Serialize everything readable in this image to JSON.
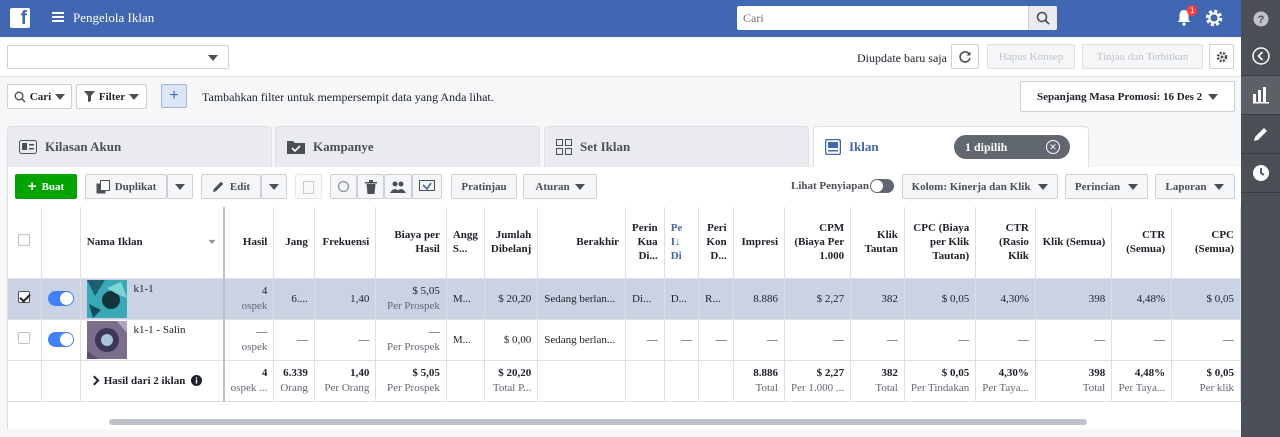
{
  "topbar": {
    "app_title": "Pengelola Iklan",
    "search_placeholder": "Cari",
    "notif_count": "1"
  },
  "colors": {
    "brand": "#4267b2",
    "create": "#00a400",
    "toggle": "#4080ff",
    "selected_row": "#c9d3e3"
  },
  "row1": {
    "updated": "Diupdate baru saja",
    "delete_drafts": "Hapus Konsep",
    "review_publish": "Tinjau dan Terbitkan"
  },
  "row2": {
    "search": "Cari",
    "filter": "Filter",
    "hint": "Tambahkan filter untuk mempersempit data yang Anda lihat.",
    "date_range": "Sepanjang Masa Promosi: 16 Des 2"
  },
  "tabs": {
    "account": "Kilasan Akun",
    "campaigns": "Kampanye",
    "adsets": "Set Iklan",
    "ads": "Iklan",
    "selected": "1 dipilih"
  },
  "toolbar": {
    "create": "Buat",
    "duplicate": "Duplikat",
    "edit": "Edit",
    "preview": "Pratinjau",
    "rules": "Aturan",
    "view_setup": "Lihat Penyiapan",
    "columns": "Kolom: Kinerja dan Klik",
    "breakdown": "Perincian",
    "reports": "Laporan"
  },
  "columns": {
    "name": "Nama Iklan",
    "results": "Hasil",
    "reach": "Jang",
    "frequency": "Frekuensi",
    "cost_per_result": "Biaya per Hasil",
    "budget": "Angg S...",
    "amount_spent": "Jumlah Dibelanj",
    "ends": "Berakhir",
    "quality": "Perin Kua Di...",
    "eng": "Pe I↓ Di",
    "conv": "Peri Kon D...",
    "impressions": "Impresi",
    "cpm": "CPM (Biaya Per 1.000",
    "link_clicks": "Klik Tautan",
    "cpc_link": "CPC (Biaya per Klik Tautan)",
    "ctr_link": "CTR (Rasio Klik",
    "clicks_all": "Klik (Semua)",
    "ctr_all": "CTR (Semua)",
    "cpc_all": "CPC (Semua)"
  },
  "rows": [
    {
      "name": "k1-1",
      "results": "4",
      "results_sub": "ospek",
      "reach": "6....",
      "frequency": "1,40",
      "cost_per_result": "$ 5,05",
      "cost_sub": "Per Prospek",
      "budget": "M...",
      "amount_spent": "$ 20,20",
      "ends": "Sedang berlan...",
      "quality": "Di...",
      "eng": "D...",
      "conv": "R...",
      "impressions": "8.886",
      "cpm": "$ 2,27",
      "link_clicks": "382",
      "cpc_link": "$ 0,05",
      "ctr_link": "4,30%",
      "clicks_all": "398",
      "ctr_all": "4,48%",
      "cpc_all": "$ 0,05"
    },
    {
      "name": "k1-1 - Salin",
      "results": "—",
      "results_sub": "ospek",
      "reach": "—",
      "frequency": "—",
      "cost_per_result": "—",
      "cost_sub": "Per Prospek",
      "budget": "M...",
      "amount_spent": "$ 0,00",
      "ends": "Sedang berlan...",
      "quality": "—",
      "eng": "—",
      "conv": "—",
      "impressions": "—",
      "cpm": "—",
      "link_clicks": "—",
      "cpc_link": "—",
      "ctr_link": "—",
      "clicks_all": "—",
      "ctr_all": "—",
      "cpc_all": "—"
    }
  ],
  "totals": {
    "label": "Hasil dari 2 iklan",
    "results": "4",
    "results_sub": "ospek ...",
    "reach": "6.339",
    "reach_sub": "Orang",
    "frequency": "1,40",
    "frequency_sub": "Per Orang",
    "cost_per_result": "$ 5,05",
    "cost_sub": "Per Prospek",
    "amount_spent": "$ 20,20",
    "amount_sub": "Total P...",
    "impressions": "8.886",
    "impressions_sub": "Total",
    "cpm": "$ 2,27",
    "cpm_sub": "Per 1.000 ...",
    "link_clicks": "382",
    "link_clicks_sub": "Total",
    "cpc_link": "$ 0,05",
    "cpc_link_sub": "Per Tindakan",
    "ctr_link": "4,30%",
    "ctr_link_sub": "Per Taya...",
    "clicks_all": "398",
    "clicks_all_sub": "Total",
    "ctr_all": "4,48%",
    "ctr_all_sub": "Per Taya...",
    "cpc_all": "$ 0,05",
    "cpc_all_sub": "Per klik"
  }
}
